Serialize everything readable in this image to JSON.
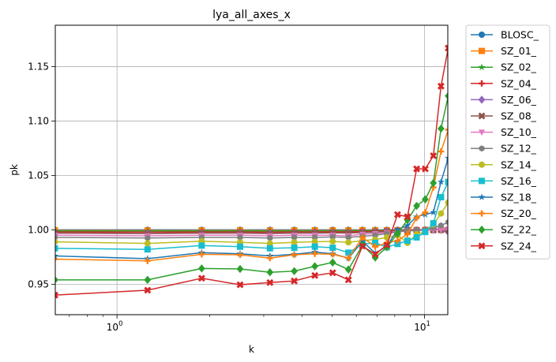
{
  "chart_data": {
    "type": "line",
    "title": "lya_all_axes_x",
    "xlabel": "k",
    "ylabel": "pk",
    "xscale": "log",
    "xlim": [
      0.63,
      11.9
    ],
    "ylim": [
      0.922,
      1.188
    ],
    "grid": true,
    "legend_placement": "outside-right",
    "x_ticks": [
      {
        "value": 1,
        "base": "10",
        "exp": "0"
      },
      {
        "value": 10,
        "base": "10",
        "exp": "1"
      }
    ],
    "y_ticks": [
      {
        "value": 0.95,
        "label": "0.95"
      },
      {
        "value": 1.0,
        "label": "1.00"
      },
      {
        "value": 1.05,
        "label": "1.05"
      },
      {
        "value": 1.1,
        "label": "1.10"
      },
      {
        "value": 1.15,
        "label": "1.15"
      }
    ],
    "x": [
      0.628,
      1.257,
      1.885,
      2.513,
      3.142,
      3.77,
      4.398,
      5.027,
      5.655,
      6.283,
      6.912,
      7.54,
      8.168,
      8.796,
      9.425,
      10.053,
      10.681,
      11.31,
      11.938
    ],
    "series": [
      {
        "name": "BLOSC_",
        "color": "#1f77b4",
        "marker": "circle",
        "values": [
          1.0,
          1.0,
          1.0,
          1.0,
          1.0,
          1.0,
          1.0,
          1.0,
          1.0,
          1.0,
          1.0,
          1.0,
          1.0,
          1.0,
          1.0,
          1.0,
          1.0,
          1.0,
          1.0
        ]
      },
      {
        "name": "SZ_01_",
        "color": "#ff7f0e",
        "marker": "square",
        "values": [
          0.9995,
          0.9994,
          0.9995,
          0.9995,
          0.9994,
          0.9995,
          0.9995,
          0.9995,
          0.9994,
          0.9996,
          0.9995,
          0.9996,
          0.9997,
          0.9998,
          0.9998,
          0.9999,
          0.9999,
          1.0,
          1.0
        ]
      },
      {
        "name": "SZ_02_",
        "color": "#2ca02c",
        "marker": "star",
        "values": [
          0.999,
          0.9989,
          0.999,
          0.999,
          0.9989,
          0.999,
          0.999,
          0.9991,
          0.999,
          0.9992,
          0.9993,
          0.9995,
          0.9996,
          0.9998,
          0.9999,
          1.0,
          1.0,
          1.0001,
          1.0001
        ]
      },
      {
        "name": "SZ_04_",
        "color": "#d62728",
        "marker": "plus",
        "values": [
          0.998,
          0.9978,
          0.998,
          0.998,
          0.9978,
          0.998,
          0.998,
          0.9982,
          0.998,
          0.9985,
          0.9986,
          0.999,
          0.9993,
          0.9996,
          0.9998,
          1.0,
          1.0002,
          1.0003,
          1.0004
        ]
      },
      {
        "name": "SZ_06_",
        "color": "#9467bd",
        "marker": "diamond",
        "values": [
          0.997,
          0.9966,
          0.997,
          0.997,
          0.9967,
          0.997,
          0.997,
          0.9972,
          0.997,
          0.9975,
          0.9978,
          0.9984,
          0.9988,
          0.9992,
          0.9995,
          0.9998,
          0.9999,
          0.9999,
          0.998
        ]
      },
      {
        "name": "SZ_08_",
        "color": "#8c564b",
        "marker": "x",
        "values": [
          0.997,
          0.9965,
          0.997,
          0.997,
          0.9965,
          0.997,
          0.997,
          0.9973,
          0.997,
          0.9976,
          0.998,
          0.9986,
          0.999,
          0.9993,
          0.9995,
          0.9996,
          0.9997,
          0.9999,
          1.0
        ]
      },
      {
        "name": "SZ_10_",
        "color": "#e377c2",
        "marker": "triangle-down",
        "values": [
          0.995,
          0.9945,
          0.995,
          0.995,
          0.9945,
          0.995,
          0.995,
          0.995,
          0.9945,
          0.996,
          0.9965,
          0.9975,
          0.9985,
          0.999,
          0.9992,
          0.9995,
          0.9997,
          0.9999,
          1.0005
        ]
      },
      {
        "name": "SZ_12_",
        "color": "#7f7f7f",
        "marker": "hexagon",
        "values": [
          0.993,
          0.9925,
          0.993,
          0.993,
          0.9925,
          0.993,
          0.993,
          0.9935,
          0.993,
          0.994,
          0.995,
          0.9965,
          0.998,
          0.999,
          0.9995,
          1.0,
          1.002,
          1.004,
          1.007
        ]
      },
      {
        "name": "SZ_14_",
        "color": "#bcbd22",
        "marker": "octagon",
        "values": [
          0.989,
          0.9875,
          0.9895,
          0.9885,
          0.9875,
          0.9885,
          0.989,
          0.9893,
          0.9885,
          0.99,
          0.991,
          0.993,
          0.995,
          0.988,
          0.996,
          0.998,
          1.005,
          1.015,
          1.025
        ]
      },
      {
        "name": "SZ_16_",
        "color": "#17becf",
        "marker": "square",
        "values": [
          0.983,
          0.982,
          0.9855,
          0.9845,
          0.983,
          0.9835,
          0.9845,
          0.9835,
          0.979,
          0.987,
          0.988,
          0.984,
          0.987,
          0.99,
          0.993,
          0.998,
          1.006,
          1.03,
          1.044
        ]
      },
      {
        "name": "SZ_18_",
        "color": "#1f77b4",
        "marker": "star",
        "values": [
          0.976,
          0.9735,
          0.979,
          0.978,
          0.976,
          0.9775,
          0.9795,
          0.978,
          0.974,
          0.9895,
          0.9785,
          0.985,
          1.0,
          1.004,
          1.012,
          1.014,
          1.016,
          1.044,
          1.066
        ]
      },
      {
        "name": "SZ_20_",
        "color": "#ff7f0e",
        "marker": "plus",
        "values": [
          0.973,
          0.9715,
          0.9775,
          0.977,
          0.974,
          0.977,
          0.978,
          0.9775,
          0.974,
          0.993,
          0.9845,
          0.988,
          0.99,
          0.996,
          1.011,
          1.016,
          1.039,
          1.072,
          1.092
        ]
      },
      {
        "name": "SZ_22_",
        "color": "#2ca02c",
        "marker": "diamond",
        "values": [
          0.954,
          0.954,
          0.9645,
          0.964,
          0.961,
          0.962,
          0.9665,
          0.97,
          0.9635,
          0.986,
          0.9745,
          0.984,
          0.9965,
          1.009,
          1.022,
          1.028,
          1.043,
          1.093,
          1.123
        ]
      },
      {
        "name": "SZ_24_",
        "color": "#d62728",
        "marker": "x",
        "values": [
          0.94,
          0.9445,
          0.9555,
          0.9495,
          0.9515,
          0.953,
          0.958,
          0.9605,
          0.954,
          0.985,
          0.9775,
          0.986,
          1.014,
          1.012,
          1.056,
          1.056,
          1.068,
          1.132,
          1.167
        ]
      }
    ]
  }
}
